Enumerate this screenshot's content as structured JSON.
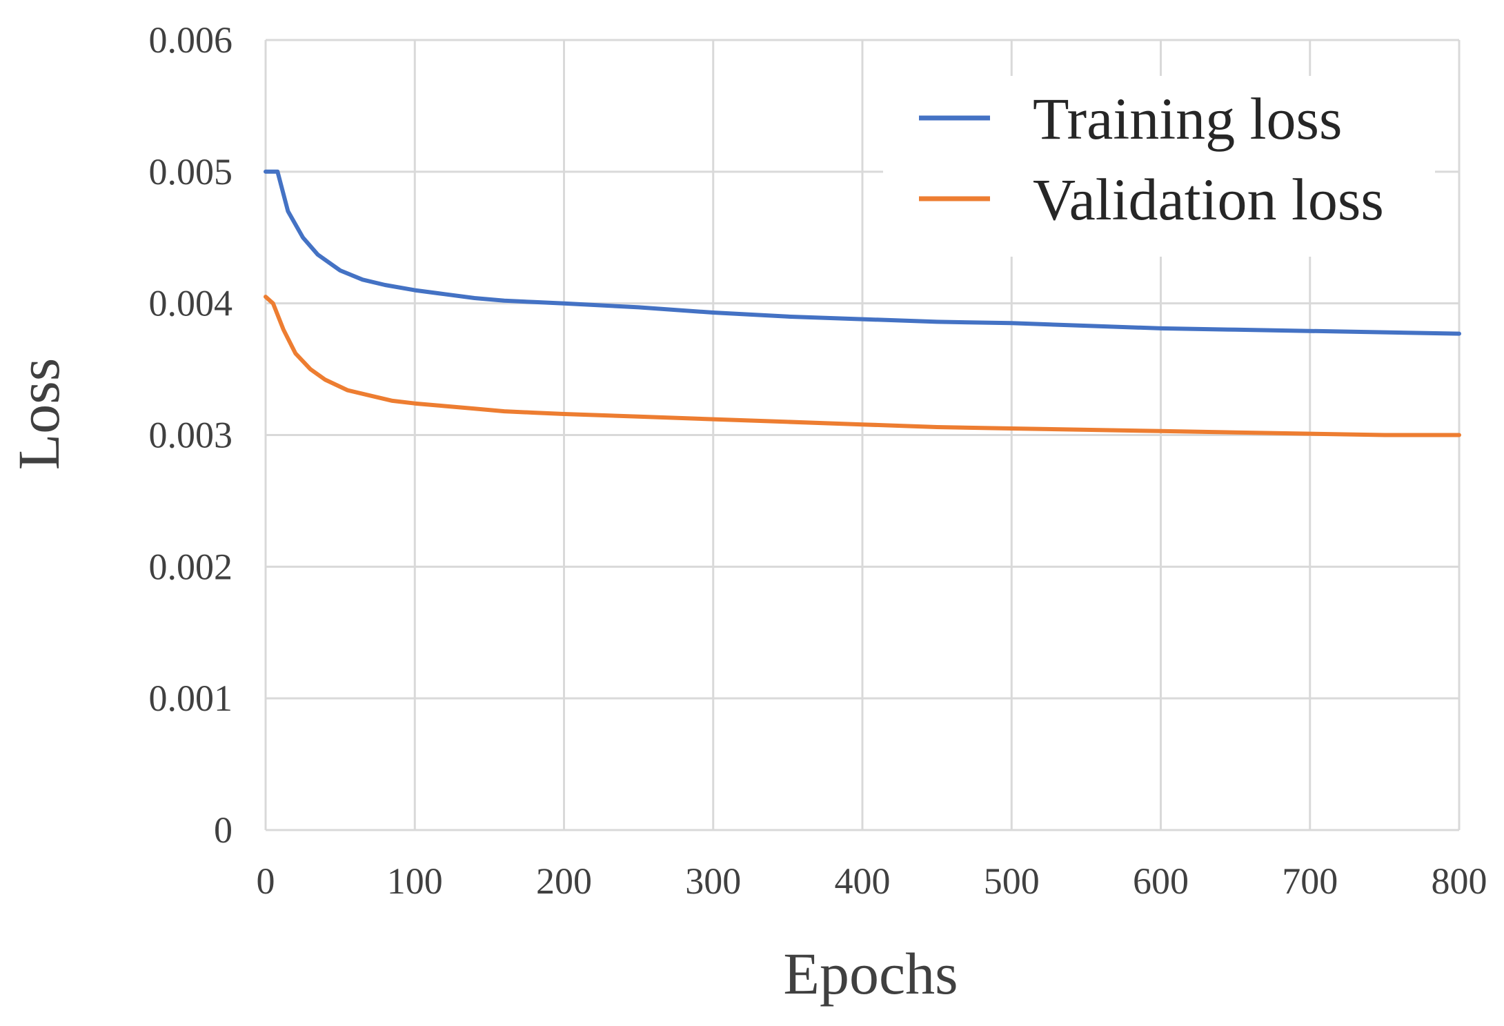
{
  "chart_data": {
    "type": "line",
    "xlabel": "Epochs",
    "ylabel": "Loss",
    "xlim": [
      0,
      800
    ],
    "ylim": [
      0,
      0.006
    ],
    "x_ticks": [
      0,
      100,
      200,
      300,
      400,
      500,
      600,
      700,
      800
    ],
    "x_tick_labels": [
      "0",
      "100",
      "200",
      "300",
      "400",
      "500",
      "600",
      "700",
      "800"
    ],
    "y_ticks": [
      0,
      0.001,
      0.002,
      0.003,
      0.004,
      0.005,
      0.006
    ],
    "y_tick_labels": [
      "0",
      "0.001",
      "0.002",
      "0.003",
      "0.004",
      "0.005",
      "0.006"
    ],
    "grid": true,
    "legend_position": "top-right",
    "series": [
      {
        "name": "Training loss",
        "color": "#4472c4",
        "x": [
          0,
          8,
          15,
          25,
          35,
          50,
          65,
          80,
          100,
          120,
          140,
          160,
          180,
          200,
          250,
          300,
          350,
          400,
          450,
          500,
          550,
          600,
          650,
          700,
          750,
          800
        ],
        "y": [
          0.005,
          0.005,
          0.0047,
          0.0045,
          0.00437,
          0.00425,
          0.00418,
          0.00414,
          0.0041,
          0.00407,
          0.00404,
          0.00402,
          0.00401,
          0.004,
          0.00397,
          0.00393,
          0.0039,
          0.00388,
          0.00386,
          0.00385,
          0.00383,
          0.00381,
          0.0038,
          0.00379,
          0.00378,
          0.00377
        ]
      },
      {
        "name": "Validation loss",
        "color": "#ed7d31",
        "x": [
          0,
          5,
          12,
          20,
          30,
          40,
          55,
          70,
          85,
          100,
          120,
          140,
          160,
          180,
          200,
          250,
          300,
          350,
          400,
          450,
          500,
          550,
          600,
          650,
          700,
          750,
          800
        ],
        "y": [
          0.00405,
          0.004,
          0.0038,
          0.00362,
          0.0035,
          0.00342,
          0.00334,
          0.0033,
          0.00326,
          0.00324,
          0.00322,
          0.0032,
          0.00318,
          0.00317,
          0.00316,
          0.00314,
          0.00312,
          0.0031,
          0.00308,
          0.00306,
          0.00305,
          0.00304,
          0.00303,
          0.00302,
          0.00301,
          0.003,
          0.003
        ]
      }
    ]
  }
}
